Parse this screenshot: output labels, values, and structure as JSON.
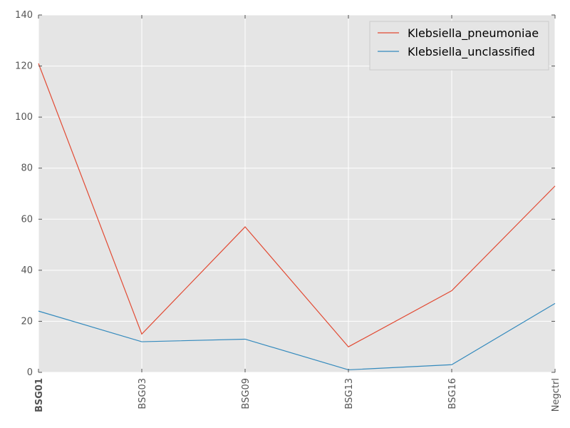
{
  "chart_data": {
    "type": "line",
    "title": "",
    "xlabel": "",
    "ylabel": "",
    "categories": [
      "BSG01",
      "BSG03",
      "BSG09",
      "BSG13",
      "BSG16",
      "Negctrl"
    ],
    "highlighted_category": "BSG01",
    "ylim": [
      0,
      140
    ],
    "yticks": [
      0,
      20,
      40,
      60,
      80,
      100,
      120,
      140
    ],
    "grid": true,
    "legend_position": "top-right",
    "series": [
      {
        "name": "Klebsiella_pneumoniae",
        "color": "#e24a33",
        "values": [
          121,
          15,
          57,
          10,
          32,
          73
        ]
      },
      {
        "name": "Klebsiella_unclassified",
        "color": "#348abd",
        "values": [
          24,
          12,
          13,
          1,
          3,
          27
        ]
      }
    ],
    "colors": {
      "plot_background": "#e5e5e5",
      "grid": "#ffffff",
      "tick_text": "#555555",
      "highlight": "#ff0000"
    }
  }
}
